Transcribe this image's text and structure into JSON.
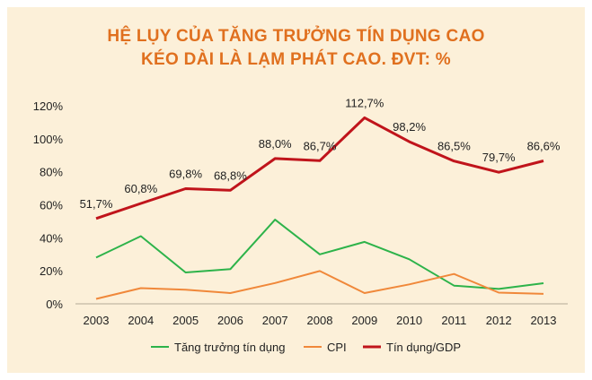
{
  "title_line1": "HỆ LỤY CỦA TĂNG TRƯỞNG TÍN DỤNG CAO",
  "title_line2": "KÉO DÀI LÀ LẠM PHÁT CAO. ĐVT: %",
  "chart_data": {
    "type": "line",
    "title": "HỆ LỤY CỦA TĂNG TRƯỞNG TÍN DỤNG CAO KÉO DÀI LÀ LẠM PHÁT CAO. ĐVT: %",
    "categories": [
      "2003",
      "2004",
      "2005",
      "2006",
      "2007",
      "2008",
      "2009",
      "2010",
      "2011",
      "2012",
      "2013"
    ],
    "ylim": [
      0,
      120
    ],
    "yticks": [
      0,
      20,
      40,
      60,
      80,
      100,
      120
    ],
    "ytick_labels": [
      "0%",
      "20%",
      "40%",
      "60%",
      "80%",
      "100%",
      "120%"
    ],
    "grid": false,
    "legend_position": "bottom",
    "series": [
      {
        "name": "Tăng trưởng tín dụng",
        "color": "#2DB34A",
        "values": [
          28,
          41,
          19,
          21,
          51,
          30,
          37.5,
          27,
          11,
          9,
          12.5
        ]
      },
      {
        "name": "CPI",
        "color": "#F0883A",
        "values": [
          3,
          9.5,
          8.5,
          6.5,
          12.6,
          19.9,
          6.5,
          11.8,
          18.1,
          6.8,
          6
        ]
      },
      {
        "name": "Tín dụng/GDP",
        "color": "#C0141B",
        "values": [
          51.7,
          60.8,
          69.8,
          68.8,
          88.0,
          86.7,
          112.7,
          98.2,
          86.5,
          79.7,
          86.6
        ],
        "data_labels": [
          "51,7%",
          "60,8%",
          "69,8%",
          "68,8%",
          "88,0%",
          "86,7%",
          "112,7%",
          "98,2%",
          "86,5%",
          "79,7%",
          "86,6%"
        ]
      }
    ]
  }
}
